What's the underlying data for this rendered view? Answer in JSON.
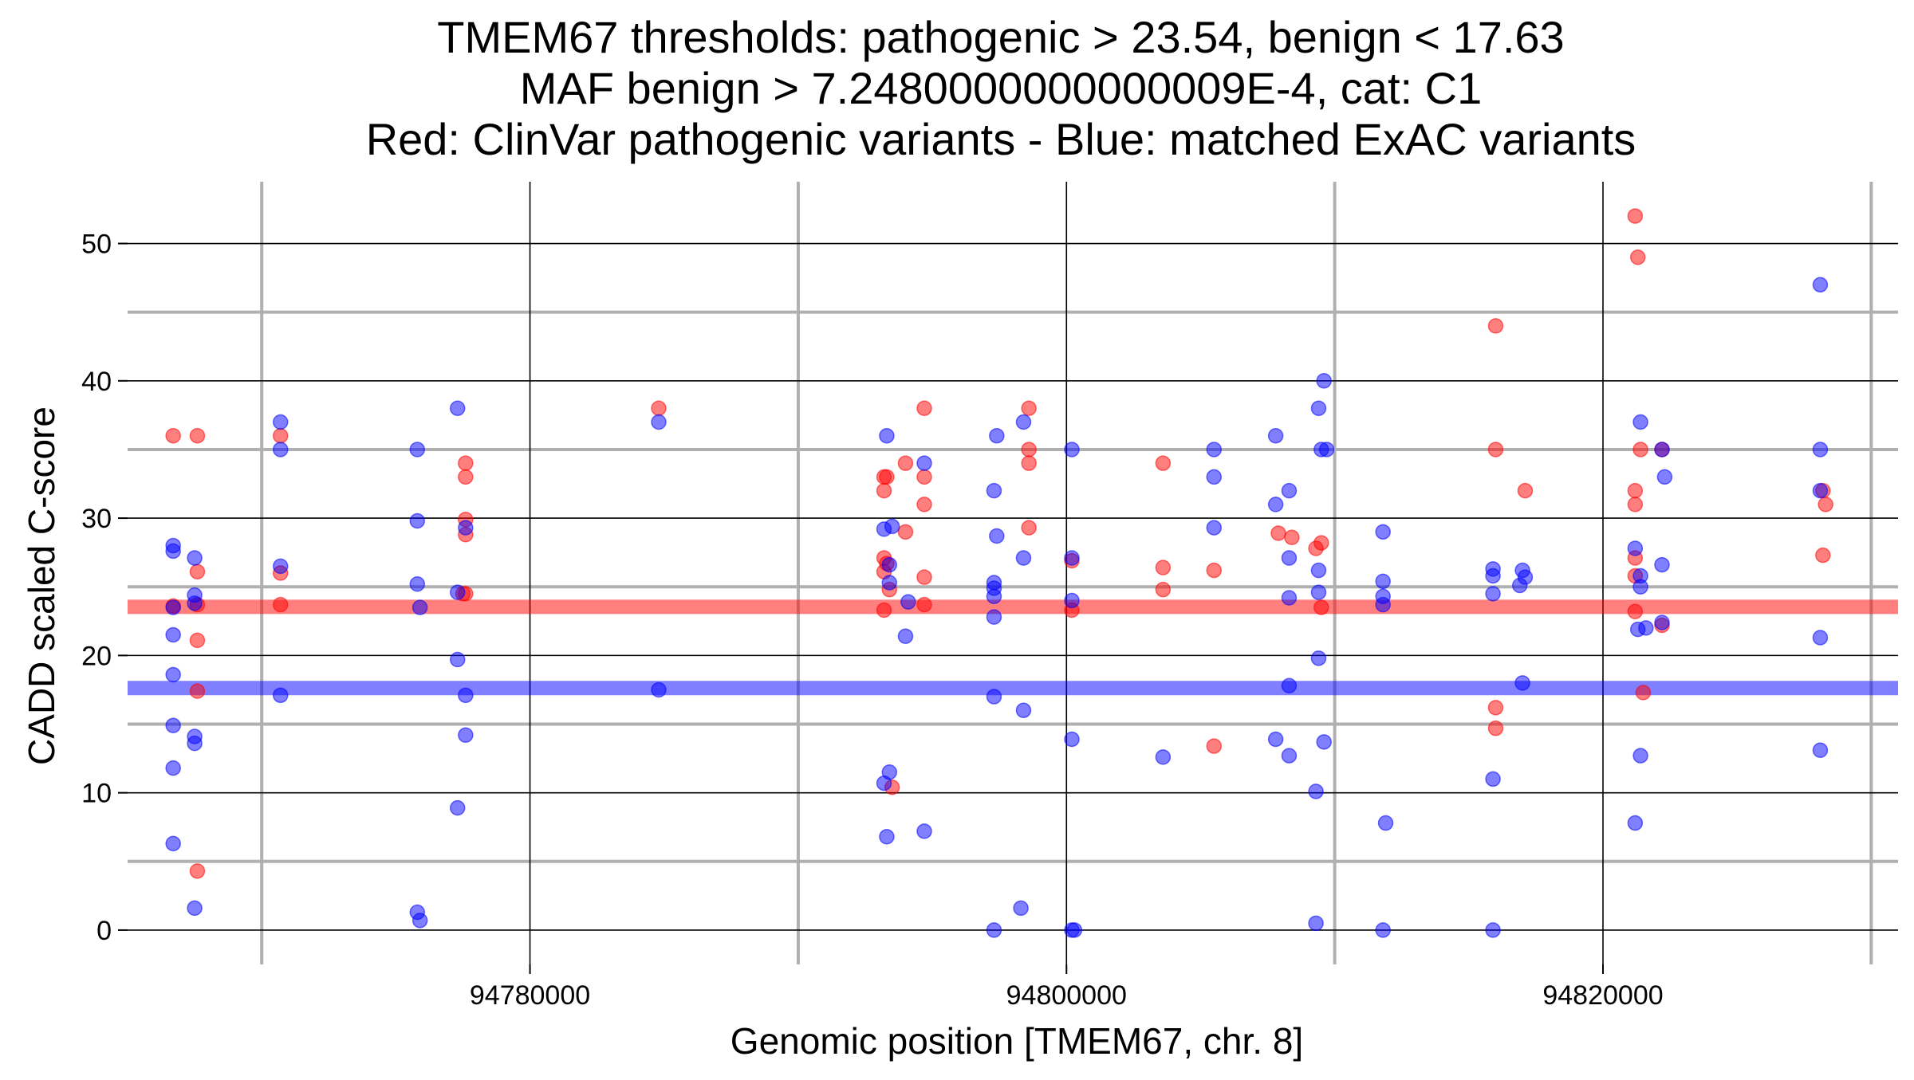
{
  "chart_data": {
    "type": "scatter",
    "title_lines": [
      "TMEM67 thresholds: pathogenic > 23.54, benign < 17.63",
      "MAF benign > 7.2480000000000009E-4, cat: C1",
      "Red: ClinVar pathogenic variants - Blue: matched ExAC variants"
    ],
    "xlabel": "Genomic position [TMEM67, chr. 8]",
    "ylabel": "CADD scaled C-score",
    "xlim": [
      94765000,
      94831000
    ],
    "ylim": [
      -2.5,
      54.5
    ],
    "x_major_ticks": [
      94780000,
      94800000,
      94820000
    ],
    "x_major_tick_labels": [
      "94780000",
      "94800000",
      "94820000"
    ],
    "x_minor_gridlines": [
      94770000,
      94790000,
      94810000,
      94830000
    ],
    "y_major_ticks": [
      0,
      10,
      20,
      30,
      40,
      50
    ],
    "y_major_tick_labels": [
      "0",
      "10",
      "20",
      "30",
      "40",
      "50"
    ],
    "y_minor_gridlines": [
      5,
      15,
      25,
      35,
      45
    ],
    "grid": true,
    "thresholds": {
      "pathogenic": 23.54,
      "benign": 17.63,
      "pathogenic_color": "#ff0000",
      "benign_color": "#0000ff"
    },
    "series": [
      {
        "color": "#ff0000",
        "points": [
          [
            94766700,
            36
          ],
          [
            94766700,
            23.6
          ],
          [
            94767600,
            36
          ],
          [
            94767600,
            26.1
          ],
          [
            94767600,
            21.1
          ],
          [
            94767600,
            17.4
          ],
          [
            94767600,
            23.7
          ],
          [
            94767600,
            4.3
          ],
          [
            94770700,
            36
          ],
          [
            94770700,
            26.0
          ],
          [
            94770700,
            23.7
          ],
          [
            94777500,
            24.5
          ],
          [
            94777600,
            34
          ],
          [
            94777600,
            33
          ],
          [
            94777600,
            29.9
          ],
          [
            94777600,
            28.8
          ],
          [
            94777600,
            24.5
          ],
          [
            94784800,
            38
          ],
          [
            94793200,
            33
          ],
          [
            94793200,
            32
          ],
          [
            94793200,
            27.1
          ],
          [
            94793200,
            26.1
          ],
          [
            94793200,
            23.3
          ],
          [
            94793300,
            26.7
          ],
          [
            94793300,
            33
          ],
          [
            94793400,
            24.8
          ],
          [
            94793500,
            10.4
          ],
          [
            94794000,
            34
          ],
          [
            94794000,
            29
          ],
          [
            94794700,
            38
          ],
          [
            94794700,
            33
          ],
          [
            94794700,
            31
          ],
          [
            94794700,
            25.7
          ],
          [
            94794700,
            23.7
          ],
          [
            94798600,
            38
          ],
          [
            94798600,
            35
          ],
          [
            94798600,
            34
          ],
          [
            94798600,
            29.3
          ],
          [
            94800200,
            26.9
          ],
          [
            94800200,
            23.3
          ],
          [
            94803600,
            34
          ],
          [
            94803600,
            26.4
          ],
          [
            94803600,
            24.8
          ],
          [
            94805500,
            26.2
          ],
          [
            94805500,
            13.4
          ],
          [
            94807900,
            28.9
          ],
          [
            94808400,
            28.6
          ],
          [
            94809300,
            27.8
          ],
          [
            94809500,
            28.2
          ],
          [
            94809500,
            23.5
          ],
          [
            94816000,
            44
          ],
          [
            94816000,
            35
          ],
          [
            94816000,
            16.2
          ],
          [
            94816000,
            14.7
          ],
          [
            94817100,
            32
          ],
          [
            94821200,
            52
          ],
          [
            94821200,
            32
          ],
          [
            94821200,
            31
          ],
          [
            94821200,
            27.1
          ],
          [
            94821200,
            25.8
          ],
          [
            94821200,
            23.2
          ],
          [
            94821300,
            49
          ],
          [
            94821400,
            35
          ],
          [
            94821500,
            17.3
          ],
          [
            94822200,
            35
          ],
          [
            94822200,
            22.2
          ],
          [
            94828200,
            32
          ],
          [
            94828300,
            31
          ],
          [
            94828200,
            27.3
          ]
        ]
      },
      {
        "color": "#0000ff",
        "points": [
          [
            94766700,
            28
          ],
          [
            94766700,
            27.6
          ],
          [
            94766700,
            23.5
          ],
          [
            94766700,
            21.5
          ],
          [
            94766700,
            18.6
          ],
          [
            94766700,
            14.9
          ],
          [
            94766700,
            11.8
          ],
          [
            94766700,
            6.3
          ],
          [
            94767500,
            27.1
          ],
          [
            94767500,
            24.4
          ],
          [
            94767500,
            23.8
          ],
          [
            94767500,
            14.1
          ],
          [
            94767500,
            13.6
          ],
          [
            94767500,
            1.6
          ],
          [
            94770700,
            37
          ],
          [
            94770700,
            35
          ],
          [
            94770700,
            26.5
          ],
          [
            94770700,
            17.1
          ],
          [
            94775800,
            35
          ],
          [
            94775800,
            29.8
          ],
          [
            94775800,
            25.2
          ],
          [
            94775900,
            23.5
          ],
          [
            94775800,
            1.3
          ],
          [
            94775900,
            0.7
          ],
          [
            94777300,
            38
          ],
          [
            94777300,
            24.6
          ],
          [
            94777300,
            19.7
          ],
          [
            94777300,
            8.9
          ],
          [
            94777600,
            29.3
          ],
          [
            94777600,
            17.1
          ],
          [
            94777600,
            14.2
          ],
          [
            94784800,
            37
          ],
          [
            94784800,
            17.5
          ],
          [
            94793300,
            36
          ],
          [
            94793200,
            29.2
          ],
          [
            94793200,
            10.7
          ],
          [
            94793300,
            6.8
          ],
          [
            94793500,
            29.4
          ],
          [
            94793400,
            26.6
          ],
          [
            94793400,
            25.3
          ],
          [
            94793400,
            11.5
          ],
          [
            94794100,
            23.9
          ],
          [
            94794000,
            21.4
          ],
          [
            94794700,
            34
          ],
          [
            94794700,
            7.2
          ],
          [
            94797400,
            36
          ],
          [
            94797300,
            32
          ],
          [
            94797400,
            28.7
          ],
          [
            94797300,
            25.3
          ],
          [
            94797300,
            24.9
          ],
          [
            94797300,
            24.3
          ],
          [
            94797300,
            22.8
          ],
          [
            94797300,
            17.0
          ],
          [
            94797300,
            0
          ],
          [
            94798400,
            37
          ],
          [
            94798400,
            27.1
          ],
          [
            94798400,
            16.0
          ],
          [
            94798300,
            1.6
          ],
          [
            94800200,
            35
          ],
          [
            94800200,
            27.1
          ],
          [
            94800200,
            24.0
          ],
          [
            94800200,
            13.9
          ],
          [
            94800200,
            0
          ],
          [
            94800300,
            0
          ],
          [
            94805500,
            35
          ],
          [
            94805500,
            33
          ],
          [
            94805500,
            29.3
          ],
          [
            94803600,
            12.6
          ],
          [
            94807800,
            36
          ],
          [
            94807800,
            31
          ],
          [
            94808300,
            32
          ],
          [
            94808300,
            27.1
          ],
          [
            94808300,
            24.2
          ],
          [
            94808300,
            17.8
          ],
          [
            94807800,
            13.9
          ],
          [
            94808300,
            12.7
          ],
          [
            94809600,
            40
          ],
          [
            94809400,
            38
          ],
          [
            94809700,
            35
          ],
          [
            94809500,
            35
          ],
          [
            94809400,
            26.2
          ],
          [
            94809400,
            24.6
          ],
          [
            94809400,
            19.8
          ],
          [
            94809600,
            13.7
          ],
          [
            94809300,
            10.1
          ],
          [
            94809300,
            0.5
          ],
          [
            94811800,
            29
          ],
          [
            94811800,
            25.4
          ],
          [
            94811800,
            24.3
          ],
          [
            94811800,
            23.7
          ],
          [
            94811900,
            7.8
          ],
          [
            94811800,
            0
          ],
          [
            94815900,
            26.3
          ],
          [
            94815900,
            25.8
          ],
          [
            94815900,
            24.5
          ],
          [
            94815900,
            11.0
          ],
          [
            94815900,
            0
          ],
          [
            94817000,
            26.2
          ],
          [
            94817100,
            25.7
          ],
          [
            94816900,
            25.1
          ],
          [
            94817000,
            18.0
          ],
          [
            94821400,
            37
          ],
          [
            94821200,
            27.8
          ],
          [
            94821400,
            25.8
          ],
          [
            94821400,
            25.0
          ],
          [
            94821300,
            21.9
          ],
          [
            94821600,
            22.0
          ],
          [
            94821400,
            12.7
          ],
          [
            94821200,
            7.8
          ],
          [
            94822200,
            35
          ],
          [
            94822300,
            33
          ],
          [
            94822200,
            26.6
          ],
          [
            94822200,
            22.4
          ],
          [
            94828100,
            47
          ],
          [
            94828100,
            35
          ],
          [
            94828100,
            32
          ],
          [
            94828100,
            21.3
          ],
          [
            94828100,
            13.1
          ]
        ]
      }
    ]
  }
}
